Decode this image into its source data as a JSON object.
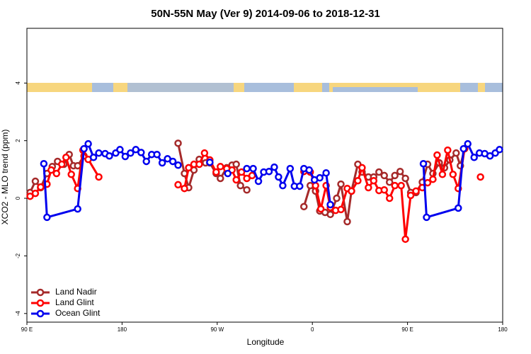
{
  "chart_data": {
    "type": "line",
    "title": "50N-55N May (Ver 9)   2014-09-06 to 2018-12-31",
    "x_label": "Longitude",
    "y_label": "XCO2 - MLO trend (ppm)",
    "xlim": [
      90,
      540
    ],
    "ylim": [
      -4.3,
      5.9
    ],
    "xticks": [
      {
        "value": 90,
        "label": "90 E"
      },
      180,
      {
        "value": 270,
        "label": "90 W"
      },
      {
        "value": 360,
        "label": "0"
      },
      {
        "value": 450,
        "label": "90 E"
      },
      {
        "value": 540,
        "label": "180"
      }
    ],
    "yticks": [
      -4,
      -2,
      0,
      2,
      4
    ],
    "legend": "lower left",
    "series": [
      {
        "name": "Land Nadir",
        "color": "#a52a2a",
        "x": [
          93,
          98,
          103,
          109,
          114,
          119,
          125,
          130,
          134,
          138,
          144,
          null,
          233,
          239,
          243,
          248,
          253,
          259,
          263,
          269,
          273,
          279,
          284,
          288,
          292,
          298,
          null,
          352,
          358,
          363,
          367,
          372,
          377,
          383,
          387,
          393,
          397,
          403,
          407,
          413,
          418,
          423,
          428,
          433,
          438,
          443,
          448,
          453,
          458,
          464,
          469,
          474,
          480,
          485,
          490,
          496,
          500,
          504
        ],
        "values": [
          0.2,
          0.59,
          0.37,
          0.86,
          1.1,
          1.28,
          1.18,
          1.52,
          1.13,
          1.13,
          1.47,
          null,
          1.91,
          0.86,
          0.37,
          0.98,
          1.35,
          1.23,
          1.23,
          0.86,
          0.69,
          1.06,
          1.15,
          1.18,
          0.44,
          0.29,
          null,
          -0.29,
          0.44,
          0.25,
          -0.44,
          -0.49,
          -0.56,
          0,
          0.49,
          -0.81,
          0.25,
          1.18,
          0.91,
          0.74,
          0.74,
          0.91,
          0.79,
          0.56,
          0.79,
          0.93,
          0.69,
          0.2,
          0.2,
          0.56,
          1.18,
          0.86,
          1.23,
          1.06,
          1.33,
          1.57,
          1.13,
          1.72
        ]
      },
      {
        "name": "Land Glint",
        "color": "#ff0000",
        "x": [
          93,
          98,
          103,
          109,
          113,
          118,
          123,
          127,
          132,
          138,
          143,
          148,
          158,
          null,
          233,
          239,
          243,
          248,
          253,
          258,
          263,
          269,
          273,
          279,
          284,
          288,
          293,
          298,
          303,
          null,
          352,
          358,
          363,
          368,
          373,
          377,
          382,
          387,
          393,
          397,
          403,
          407,
          413,
          418,
          423,
          428,
          433,
          438,
          444,
          448,
          453,
          458,
          464,
          469,
          474,
          478,
          483,
          488,
          493,
          498,
          504,
          null,
          519
        ],
        "values": [
          0.07,
          0.17,
          0.39,
          0.49,
          0.98,
          0.86,
          1.18,
          1.42,
          0.83,
          0.34,
          1.67,
          1.35,
          0.74,
          null,
          0.47,
          0.34,
          1.06,
          1.18,
          1.18,
          1.57,
          1.33,
          0.91,
          1.1,
          1.03,
          0.98,
          0.64,
          0.91,
          0.69,
          0.79,
          null,
          0.93,
          0.91,
          0.44,
          -0.37,
          0.44,
          -0.32,
          -0.42,
          -0.39,
          0.34,
          0.25,
          0.61,
          1.06,
          0.37,
          0.61,
          0.27,
          0.29,
          0,
          0.44,
          0.44,
          -1.42,
          0.1,
          0.25,
          0.37,
          0.54,
          0.66,
          1.5,
          0.83,
          1.67,
          0.83,
          0.34,
          1.72,
          null,
          0.74
        ]
      },
      {
        "name": "Ocean Glint",
        "color": "#0000ee",
        "x": [
          106,
          109,
          138,
          144,
          148,
          153,
          158,
          164,
          168,
          174,
          178,
          183,
          188,
          193,
          198,
          203,
          208,
          213,
          218,
          223,
          228,
          233,
          null,
          263,
          null,
          280,
          null,
          298,
          304,
          309,
          314,
          319,
          324,
          328,
          332,
          339,
          343,
          348,
          352,
          357,
          362,
          367,
          373,
          377,
          null,
          465,
          468,
          498,
          503,
          507,
          513,
          518,
          523,
          528,
          533,
          537
        ],
        "values": [
          1.2,
          -0.66,
          -0.37,
          1.72,
          1.89,
          1.42,
          1.57,
          1.55,
          1.47,
          1.57,
          1.69,
          1.45,
          1.57,
          1.69,
          1.59,
          1.28,
          1.52,
          1.52,
          1.23,
          1.37,
          1.28,
          1.15,
          null,
          1.25,
          null,
          0.86,
          null,
          1.03,
          1.03,
          0.59,
          0.91,
          0.93,
          1.08,
          0.74,
          0.44,
          1.03,
          0.42,
          0.42,
          1.03,
          0.98,
          0.64,
          0.71,
          0.88,
          -0.22,
          null,
          1.2,
          -0.66,
          -0.34,
          1.72,
          1.89,
          1.42,
          1.57,
          1.55,
          1.47,
          1.57,
          1.69
        ]
      }
    ]
  }
}
